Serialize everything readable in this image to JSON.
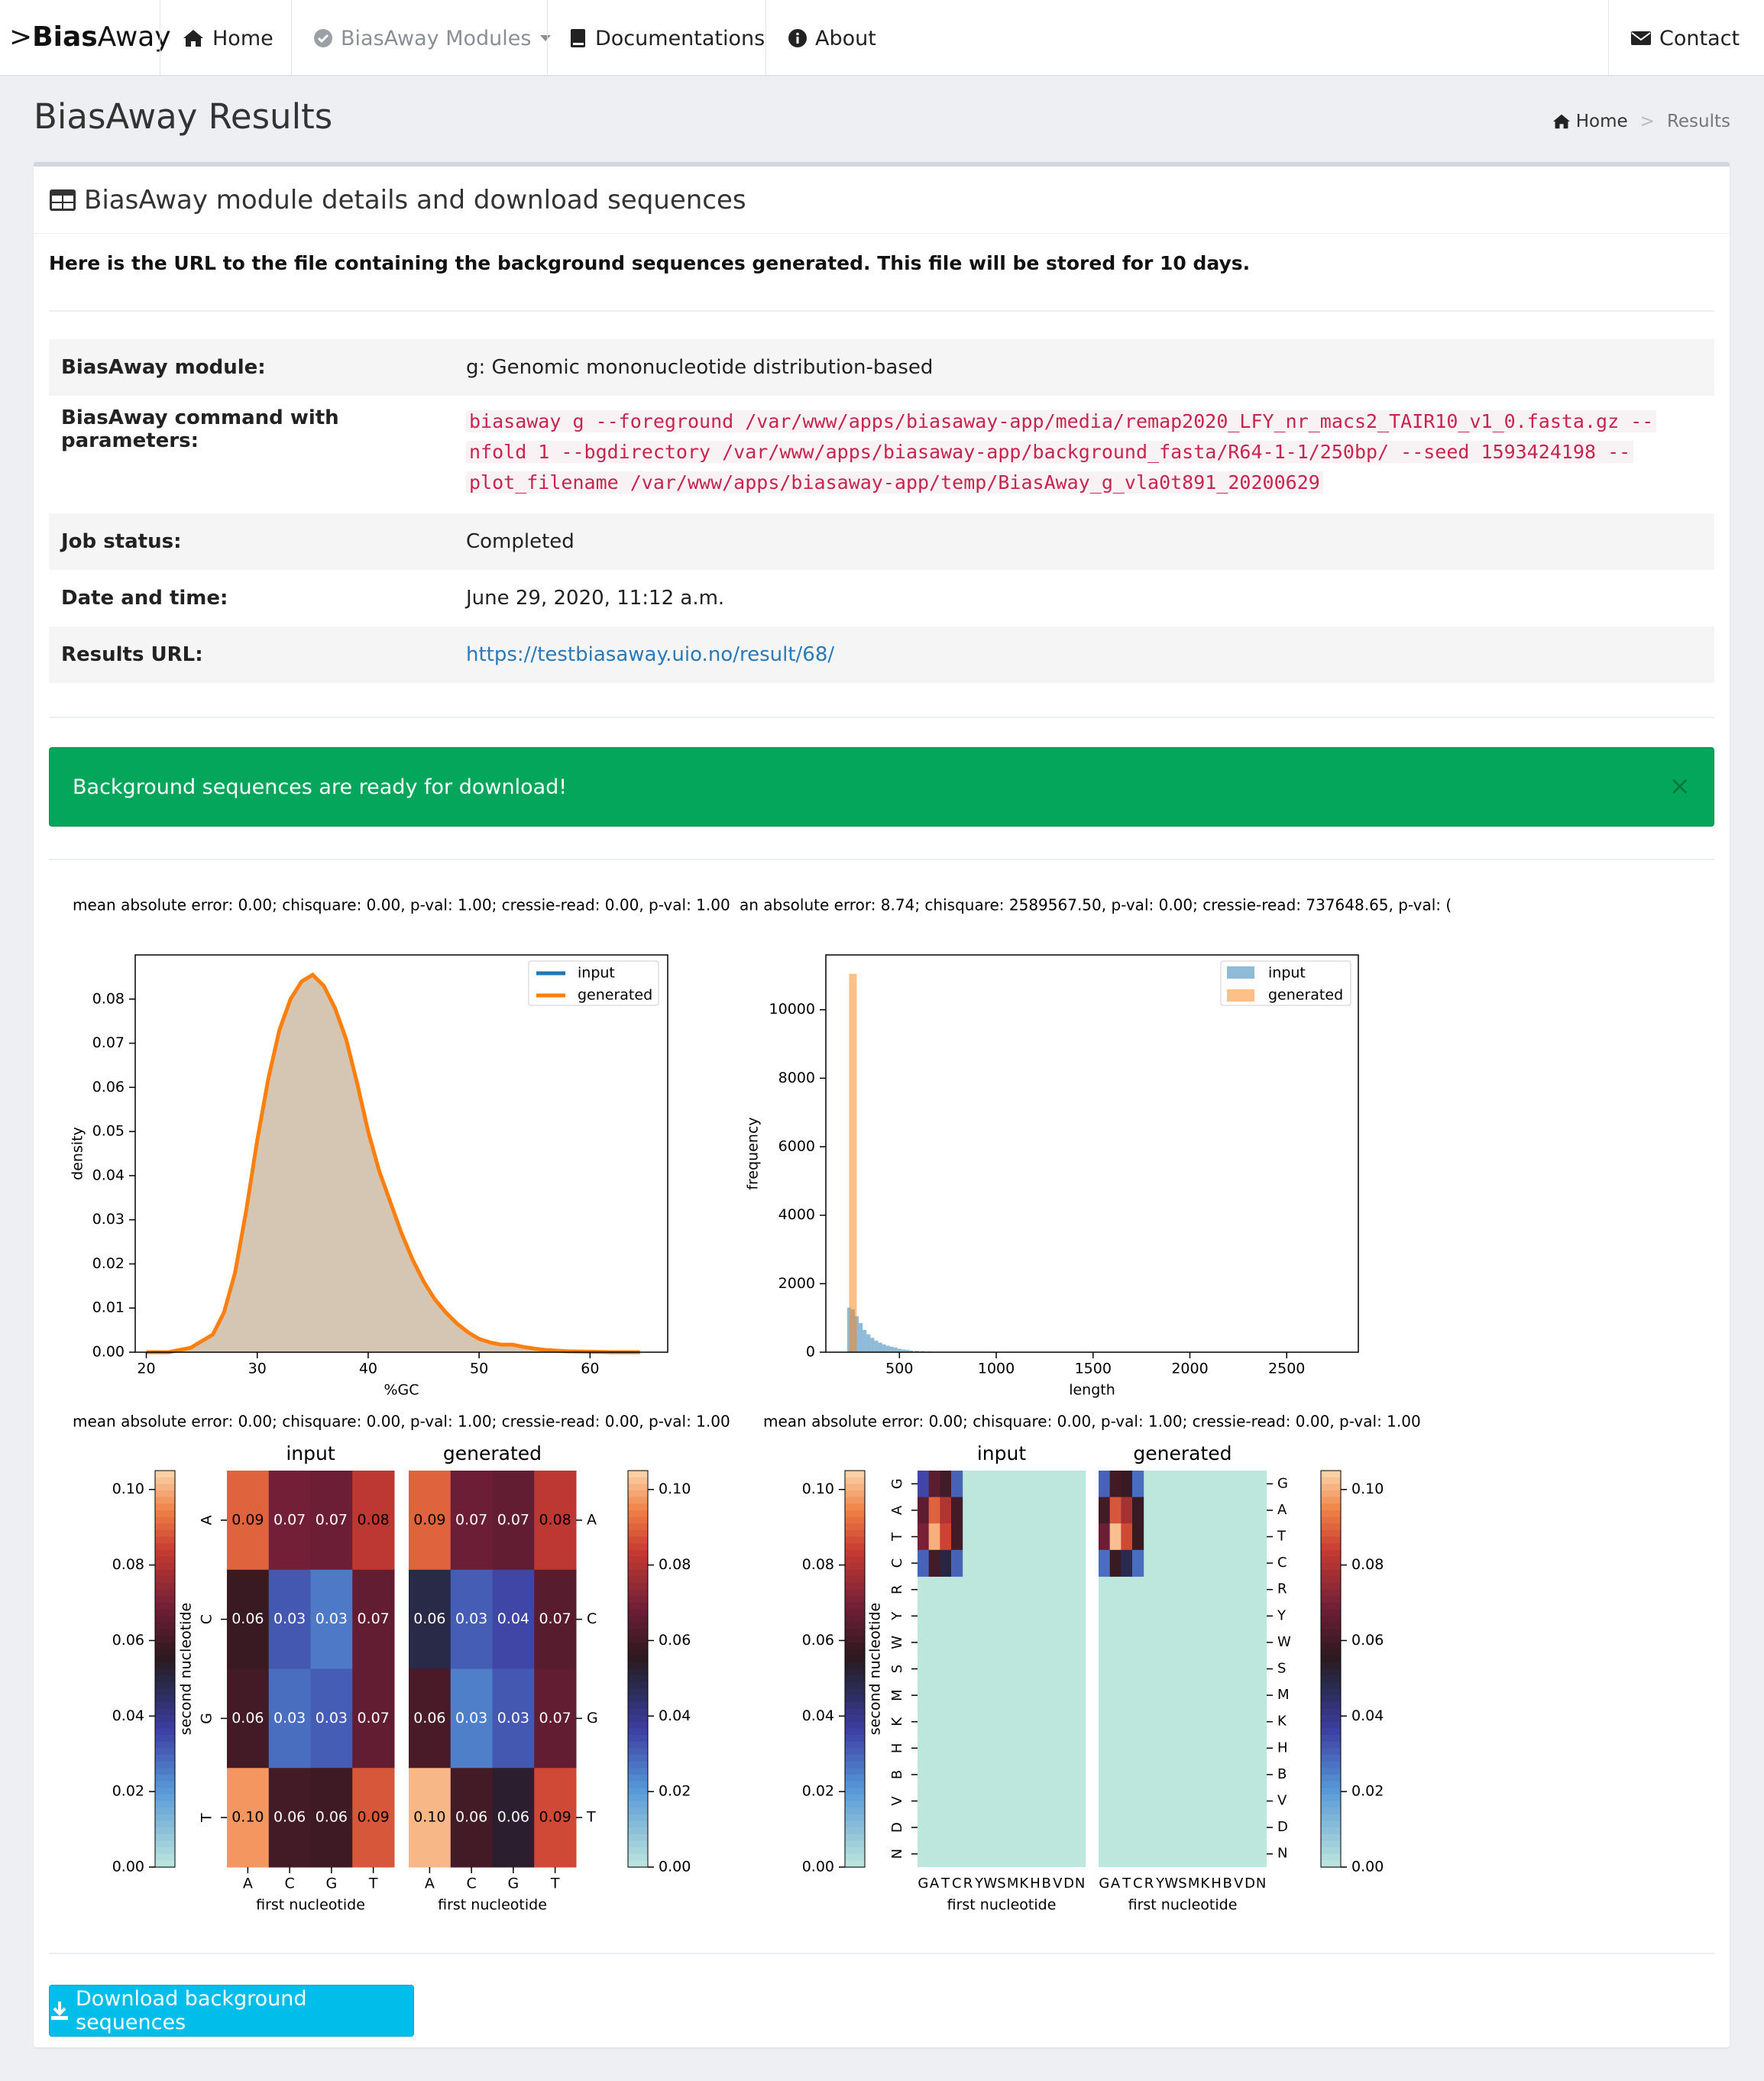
{
  "navbar": {
    "brand_prefix": ">",
    "brand_bold": "Bias",
    "brand_rest": "Away",
    "items": [
      {
        "label": "Home",
        "icon": "home-icon"
      },
      {
        "label": "BiasAway Modules",
        "icon": "check-circle-icon"
      },
      {
        "label": "Documentations",
        "icon": "book-icon"
      },
      {
        "label": "About",
        "icon": "info-icon"
      }
    ],
    "contact": {
      "label": "Contact",
      "icon": "envelope-icon"
    }
  },
  "page": {
    "title": "BiasAway Results",
    "breadcrumb": {
      "home": "Home",
      "sep": ">",
      "current": "Results"
    }
  },
  "panel": {
    "title": "BiasAway module details and download sequences",
    "intro": "Here is the URL to the file containing the background sequences generated. This file will be stored for 10 days.",
    "rows": [
      {
        "key": "BiasAway module:",
        "value": "g: Genomic mononucleotide distribution-based"
      },
      {
        "key": "BiasAway command with parameters:",
        "value": ""
      },
      {
        "key": "Job status:",
        "value": "Completed"
      },
      {
        "key": "Date and time:",
        "value": "June 29, 2020, 11:12 a.m."
      },
      {
        "key": "Results URL:",
        "value": "https://testbiasaway.uio.no/result/68/"
      }
    ],
    "command_lines": [
      "biasaway g --foreground /var/www/apps/biasaway-app/media/remap2020_LFY_nr_macs2_TAIR10_v1_0.fasta.gz --",
      "nfold 1 --bgdirectory /var/www/apps/biasaway-app/background_fasta/R64-1-1/250bp/ --seed 1593424198 --",
      "plot_filename /var/www/apps/biasaway-app/temp/BiasAway_g_vla0t891_20200629"
    ],
    "alert": "Background sequences are ready for download!",
    "alert_close": "×",
    "download_label": "Download background sequences"
  },
  "colors": {
    "input_line": "#1f77b4",
    "generated_line": "#ff7f0e",
    "kde_fill": "#d5c5b3",
    "alert_green": "#03a65a",
    "button_blue": "#01bde9",
    "heatmap_empty": "#bde6dc"
  },
  "chart_data": [
    {
      "type": "area",
      "title": "mean absolute error: 0.00; chisquare: 0.00, p-val: 1.00; cressie-read: 0.00, p-val: 1.00",
      "xlabel": "%GC",
      "ylabel": "density",
      "xlim": [
        19,
        67
      ],
      "ylim": [
        0,
        0.09
      ],
      "xticks": [
        20,
        30,
        40,
        50,
        60
      ],
      "yticks": [
        0.0,
        0.01,
        0.02,
        0.03,
        0.04,
        0.05,
        0.06,
        0.07,
        0.08
      ],
      "legend": [
        "input",
        "generated"
      ],
      "legend_position": "upper right",
      "series": [
        {
          "name": "input",
          "x": [
            20,
            22,
            24,
            26,
            27,
            28,
            29,
            30,
            31,
            32,
            33,
            34,
            35,
            36,
            37,
            38,
            39,
            40,
            41,
            42,
            43,
            44,
            45,
            46,
            47,
            48,
            49,
            50,
            51,
            52,
            53,
            54,
            55,
            56,
            58,
            60,
            62,
            64.5
          ],
          "y": [
            0.0,
            0.0,
            0.001,
            0.004,
            0.009,
            0.018,
            0.032,
            0.048,
            0.062,
            0.073,
            0.08,
            0.084,
            0.0855,
            0.083,
            0.078,
            0.071,
            0.061,
            0.05,
            0.041,
            0.034,
            0.027,
            0.021,
            0.016,
            0.012,
            0.009,
            0.0065,
            0.0045,
            0.003,
            0.0022,
            0.0017,
            0.0017,
            0.0012,
            0.0008,
            0.0005,
            0.0002,
            0.0001,
            0.0,
            0.0
          ]
        },
        {
          "name": "generated",
          "x": [
            20,
            22,
            24,
            26,
            27,
            28,
            29,
            30,
            31,
            32,
            33,
            34,
            35,
            36,
            37,
            38,
            39,
            40,
            41,
            42,
            43,
            44,
            45,
            46,
            47,
            48,
            49,
            50,
            51,
            52,
            53,
            54,
            55,
            56,
            58,
            60,
            62,
            64.5
          ],
          "y": [
            0.0,
            0.0,
            0.001,
            0.004,
            0.009,
            0.018,
            0.032,
            0.048,
            0.062,
            0.073,
            0.08,
            0.084,
            0.0855,
            0.083,
            0.078,
            0.071,
            0.061,
            0.05,
            0.041,
            0.034,
            0.027,
            0.021,
            0.016,
            0.012,
            0.009,
            0.0065,
            0.0045,
            0.003,
            0.0022,
            0.0017,
            0.0017,
            0.0012,
            0.0008,
            0.0005,
            0.0002,
            0.0001,
            0.0,
            0.0
          ]
        }
      ]
    },
    {
      "type": "bar",
      "title": "an absolute error: 8.74; chisquare: 2589567.50, p-val: 0.00; cressie-read: 737648.65, p-val: (",
      "xlabel": "length",
      "ylabel": "frequency",
      "xlim": [
        120,
        2870
      ],
      "ylim": [
        0,
        11600
      ],
      "xticks": [
        500,
        1000,
        1500,
        2000,
        2500
      ],
      "yticks": [
        0,
        2000,
        4000,
        6000,
        8000,
        10000
      ],
      "legend": [
        "input",
        "generated"
      ],
      "legend_position": "upper right",
      "series": [
        {
          "name": "input",
          "bin_start": [
            230,
            250,
            270,
            290,
            310,
            330,
            350,
            370,
            390,
            410,
            430,
            450,
            470,
            490,
            510,
            530,
            550,
            580,
            610,
            650,
            700,
            760,
            820,
            880
          ],
          "bin_width": 20,
          "values": [
            1300,
            1250,
            1050,
            850,
            650,
            520,
            420,
            340,
            280,
            230,
            190,
            160,
            130,
            100,
            80,
            65,
            50,
            40,
            30,
            20,
            14,
            10,
            6,
            3
          ]
        },
        {
          "name": "generated",
          "bin_start": [
            240
          ],
          "bin_width": 20,
          "values": [
            11050
          ]
        }
      ]
    },
    {
      "type": "heatmap",
      "title": "mean absolute error: 0.00; chisquare: 0.00, p-val: 1.00; cressie-read: 0.00, p-val: 1.00",
      "xlabel": "first nucleotide",
      "ylabel": "second nucleotide",
      "panels": [
        "input",
        "generated"
      ],
      "x_categories": [
        "A",
        "C",
        "G",
        "T"
      ],
      "y_categories": [
        "A",
        "C",
        "G",
        "T"
      ],
      "colorbar_ticks": [
        "0.00",
        "0.02",
        "0.04",
        "0.06",
        "0.08",
        "0.10"
      ],
      "vmin": 0,
      "vmax": 0.105,
      "input_values": [
        [
          0.09,
          0.07,
          0.07,
          0.08
        ],
        [
          0.06,
          0.03,
          0.03,
          0.07
        ],
        [
          0.06,
          0.03,
          0.03,
          0.07
        ],
        [
          0.1,
          0.06,
          0.06,
          0.09
        ]
      ],
      "input_shade": [
        [
          0.09,
          0.069,
          0.068,
          0.082
        ],
        [
          0.058,
          0.032,
          0.026,
          0.066
        ],
        [
          0.06,
          0.028,
          0.031,
          0.066
        ],
        [
          0.097,
          0.06,
          0.059,
          0.088
        ]
      ],
      "input_labels": [
        [
          "0.09",
          "0.07",
          "0.07",
          "0.08"
        ],
        [
          "0.06",
          "0.03",
          "0.03",
          "0.07"
        ],
        [
          "0.06",
          "0.03",
          "0.03",
          "0.07"
        ],
        [
          "0.10",
          "0.06",
          "0.06",
          "0.09"
        ]
      ],
      "generated_values": [
        [
          0.09,
          0.07,
          0.07,
          0.08
        ],
        [
          0.06,
          0.03,
          0.04,
          0.07
        ],
        [
          0.06,
          0.03,
          0.03,
          0.07
        ],
        [
          0.1,
          0.06,
          0.06,
          0.09
        ]
      ],
      "generated_shade": [
        [
          0.09,
          0.068,
          0.066,
          0.082
        ],
        [
          0.049,
          0.031,
          0.035,
          0.064
        ],
        [
          0.061,
          0.025,
          0.032,
          0.066
        ],
        [
          0.101,
          0.06,
          0.053,
          0.086
        ]
      ],
      "generated_labels": [
        [
          "0.09",
          "0.07",
          "0.07",
          "0.08"
        ],
        [
          "0.06",
          "0.03",
          "0.04",
          "0.07"
        ],
        [
          "0.06",
          "0.03",
          "0.03",
          "0.07"
        ],
        [
          "0.10",
          "0.06",
          "0.06",
          "0.09"
        ]
      ]
    },
    {
      "type": "heatmap",
      "title": "mean absolute error: 0.00; chisquare: 0.00, p-val: 1.00; cressie-read: 0.00, p-val: 1.00",
      "xlabel": "first nucleotide",
      "ylabel": "second nucleotide",
      "panels": [
        "input",
        "generated"
      ],
      "x_categories": [
        "G",
        "A",
        "T",
        "C",
        "R",
        "Y",
        "W",
        "S",
        "M",
        "K",
        "H",
        "B",
        "V",
        "D",
        "N"
      ],
      "y_categories": [
        "G",
        "A",
        "T",
        "C",
        "R",
        "Y",
        "W",
        "S",
        "M",
        "K",
        "H",
        "B",
        "V",
        "D",
        "N"
      ],
      "colorbar_ticks": [
        "0.00",
        "0.02",
        "0.04",
        "0.06",
        "0.08",
        "0.10"
      ],
      "vmin": 0,
      "vmax": 0.105,
      "input_block": [
        [
          0.035,
          0.065,
          0.06,
          0.03
        ],
        [
          0.065,
          0.09,
          0.08,
          0.06
        ],
        [
          0.07,
          0.1,
          0.085,
          0.06
        ],
        [
          0.03,
          0.06,
          0.05,
          0.03
        ]
      ],
      "generated_block": [
        [
          0.03,
          0.06,
          0.058,
          0.028
        ],
        [
          0.06,
          0.088,
          0.078,
          0.058
        ],
        [
          0.068,
          0.102,
          0.086,
          0.058
        ],
        [
          0.028,
          0.058,
          0.048,
          0.028
        ]
      ],
      "other_cells_value": 0
    }
  ]
}
